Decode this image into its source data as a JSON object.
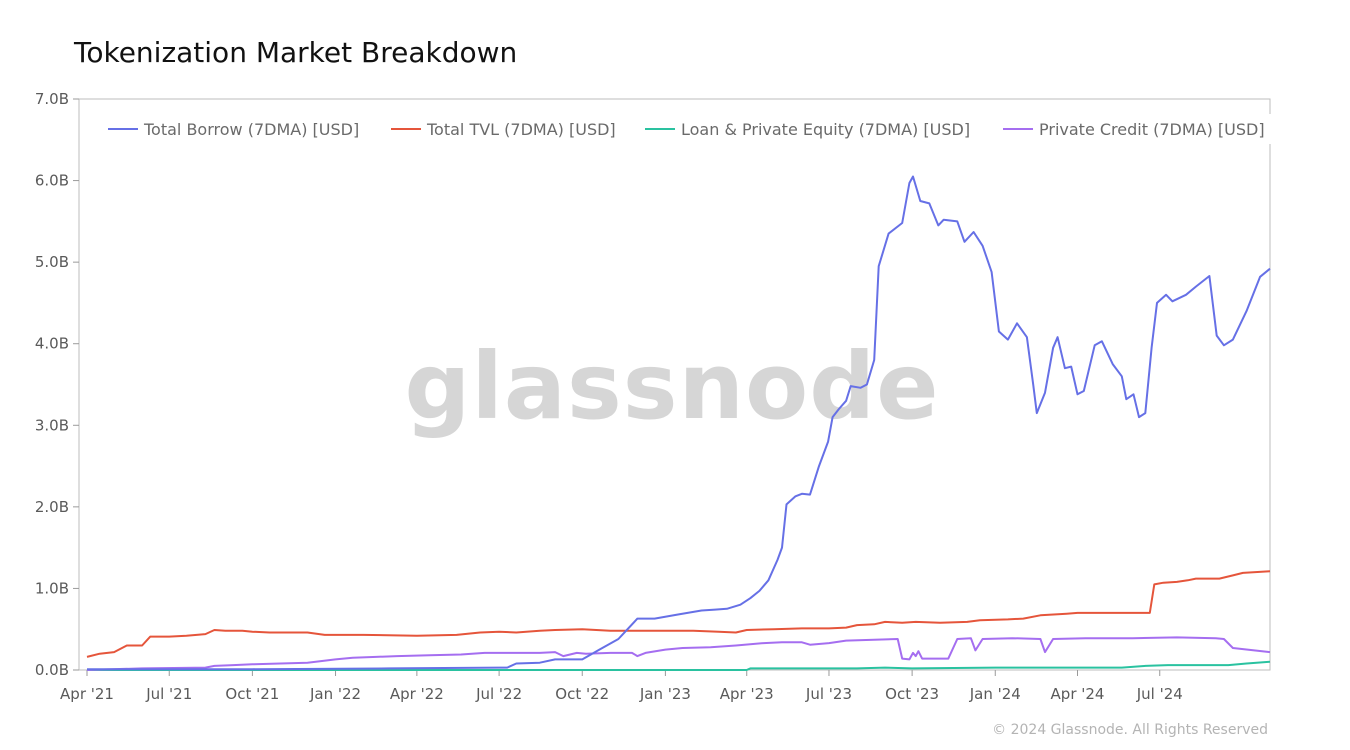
{
  "page": {
    "title": "Tokenization Market Breakdown",
    "watermark": "glassnode",
    "copyright": "© 2024 Glassnode. All Rights Reserved"
  },
  "chart_data": {
    "type": "line",
    "title": "Tokenization Market Breakdown",
    "xlabel": "",
    "ylabel": "",
    "grid": false,
    "legend_position": "top",
    "x_range": [
      "2021-04-01",
      "2024-10-31"
    ],
    "y_range": [
      0,
      7.0
    ],
    "y_unit": "B USD",
    "x_ticks": [
      {
        "date": "2021-04-01",
        "label": "Apr '21"
      },
      {
        "date": "2021-07-01",
        "label": "Jul '21"
      },
      {
        "date": "2021-10-01",
        "label": "Oct '21"
      },
      {
        "date": "2022-01-01",
        "label": "Jan '22"
      },
      {
        "date": "2022-04-01",
        "label": "Apr '22"
      },
      {
        "date": "2022-07-01",
        "label": "Jul '22"
      },
      {
        "date": "2022-10-01",
        "label": "Oct '22"
      },
      {
        "date": "2023-01-01",
        "label": "Jan '23"
      },
      {
        "date": "2023-04-01",
        "label": "Apr '23"
      },
      {
        "date": "2023-07-01",
        "label": "Jul '23"
      },
      {
        "date": "2023-10-01",
        "label": "Oct '23"
      },
      {
        "date": "2024-01-01",
        "label": "Jan '24"
      },
      {
        "date": "2024-04-01",
        "label": "Apr '24"
      },
      {
        "date": "2024-07-01",
        "label": "Jul '24"
      }
    ],
    "y_ticks": [
      {
        "value": 0,
        "label": "0.0B"
      },
      {
        "value": 1,
        "label": "1.0B"
      },
      {
        "value": 2,
        "label": "2.0B"
      },
      {
        "value": 3,
        "label": "3.0B"
      },
      {
        "value": 4,
        "label": "4.0B"
      },
      {
        "value": 5,
        "label": "5.0B"
      },
      {
        "value": 6,
        "label": "6.0B"
      },
      {
        "value": 7,
        "label": "7.0B"
      }
    ],
    "series": [
      {
        "name": "Total Borrow (7DMA) [USD]",
        "color": "#6670e6",
        "points": [
          [
            "2021-04-01",
            0.01
          ],
          [
            "2021-10-01",
            0.01
          ],
          [
            "2022-03-01",
            0.02
          ],
          [
            "2022-07-01",
            0.03
          ],
          [
            "2022-07-10",
            0.03
          ],
          [
            "2022-07-20",
            0.08
          ],
          [
            "2022-08-15",
            0.09
          ],
          [
            "2022-09-01",
            0.13
          ],
          [
            "2022-10-01",
            0.13
          ],
          [
            "2022-10-20",
            0.25
          ],
          [
            "2022-11-10",
            0.38
          ],
          [
            "2022-12-01",
            0.63
          ],
          [
            "2022-12-20",
            0.63
          ],
          [
            "2023-01-15",
            0.68
          ],
          [
            "2023-02-10",
            0.73
          ],
          [
            "2023-02-25",
            0.74
          ],
          [
            "2023-03-10",
            0.75
          ],
          [
            "2023-03-25",
            0.8
          ],
          [
            "2023-04-05",
            0.88
          ],
          [
            "2023-04-15",
            0.97
          ],
          [
            "2023-04-25",
            1.1
          ],
          [
            "2023-05-05",
            1.35
          ],
          [
            "2023-05-10",
            1.5
          ],
          [
            "2023-05-15",
            2.03
          ],
          [
            "2023-05-25",
            2.13
          ],
          [
            "2023-06-01",
            2.16
          ],
          [
            "2023-06-10",
            2.15
          ],
          [
            "2023-06-20",
            2.5
          ],
          [
            "2023-06-30",
            2.8
          ],
          [
            "2023-07-05",
            3.1
          ],
          [
            "2023-07-12",
            3.2
          ],
          [
            "2023-07-20",
            3.3
          ],
          [
            "2023-07-25",
            3.48
          ],
          [
            "2023-08-05",
            3.46
          ],
          [
            "2023-08-12",
            3.5
          ],
          [
            "2023-08-20",
            3.8
          ],
          [
            "2023-08-25",
            4.95
          ],
          [
            "2023-09-05",
            5.35
          ],
          [
            "2023-09-20",
            5.48
          ],
          [
            "2023-09-28",
            5.97
          ],
          [
            "2023-10-02",
            6.05
          ],
          [
            "2023-10-10",
            5.75
          ],
          [
            "2023-10-20",
            5.72
          ],
          [
            "2023-10-30",
            5.45
          ],
          [
            "2023-11-05",
            5.52
          ],
          [
            "2023-11-20",
            5.5
          ],
          [
            "2023-11-28",
            5.25
          ],
          [
            "2023-12-08",
            5.37
          ],
          [
            "2023-12-18",
            5.2
          ],
          [
            "2023-12-28",
            4.88
          ],
          [
            "2024-01-05",
            4.15
          ],
          [
            "2024-01-15",
            4.05
          ],
          [
            "2024-01-25",
            4.25
          ],
          [
            "2024-02-05",
            4.08
          ],
          [
            "2024-02-12",
            3.5
          ],
          [
            "2024-02-16",
            3.15
          ],
          [
            "2024-02-25",
            3.4
          ],
          [
            "2024-03-05",
            3.95
          ],
          [
            "2024-03-10",
            4.08
          ],
          [
            "2024-03-18",
            3.7
          ],
          [
            "2024-03-25",
            3.72
          ],
          [
            "2024-04-01",
            3.38
          ],
          [
            "2024-04-08",
            3.42
          ],
          [
            "2024-04-20",
            3.98
          ],
          [
            "2024-04-28",
            4.03
          ],
          [
            "2024-05-10",
            3.75
          ],
          [
            "2024-05-20",
            3.6
          ],
          [
            "2024-05-25",
            3.32
          ],
          [
            "2024-06-02",
            3.38
          ],
          [
            "2024-06-08",
            3.1
          ],
          [
            "2024-06-15",
            3.15
          ],
          [
            "2024-06-22",
            3.95
          ],
          [
            "2024-06-28",
            4.5
          ],
          [
            "2024-07-08",
            4.6
          ],
          [
            "2024-07-15",
            4.52
          ],
          [
            "2024-07-30",
            4.6
          ],
          [
            "2024-08-10",
            4.7
          ],
          [
            "2024-08-25",
            4.83
          ],
          [
            "2024-09-02",
            4.1
          ],
          [
            "2024-09-10",
            3.98
          ],
          [
            "2024-09-20",
            4.05
          ],
          [
            "2024-10-05",
            4.4
          ],
          [
            "2024-10-20",
            4.82
          ],
          [
            "2024-10-31",
            4.92
          ]
        ]
      },
      {
        "name": "Total TVL (7DMA) [USD]",
        "color": "#e5553b",
        "points": [
          [
            "2021-04-01",
            0.16
          ],
          [
            "2021-04-15",
            0.2
          ],
          [
            "2021-05-01",
            0.22
          ],
          [
            "2021-05-15",
            0.3
          ],
          [
            "2021-06-01",
            0.3
          ],
          [
            "2021-06-10",
            0.41
          ],
          [
            "2021-07-01",
            0.41
          ],
          [
            "2021-07-20",
            0.42
          ],
          [
            "2021-08-10",
            0.44
          ],
          [
            "2021-08-20",
            0.49
          ],
          [
            "2021-09-01",
            0.48
          ],
          [
            "2021-09-20",
            0.48
          ],
          [
            "2021-10-01",
            0.47
          ],
          [
            "2021-10-20",
            0.46
          ],
          [
            "2021-12-01",
            0.46
          ],
          [
            "2021-12-20",
            0.43
          ],
          [
            "2022-02-01",
            0.43
          ],
          [
            "2022-04-01",
            0.42
          ],
          [
            "2022-05-15",
            0.43
          ],
          [
            "2022-06-10",
            0.46
          ],
          [
            "2022-07-01",
            0.47
          ],
          [
            "2022-07-20",
            0.46
          ],
          [
            "2022-08-15",
            0.48
          ],
          [
            "2022-09-01",
            0.49
          ],
          [
            "2022-10-01",
            0.5
          ],
          [
            "2022-11-01",
            0.48
          ],
          [
            "2022-12-01",
            0.48
          ],
          [
            "2023-01-01",
            0.48
          ],
          [
            "2023-02-01",
            0.48
          ],
          [
            "2023-03-01",
            0.47
          ],
          [
            "2023-03-20",
            0.46
          ],
          [
            "2023-04-01",
            0.49
          ],
          [
            "2023-05-01",
            0.5
          ],
          [
            "2023-06-01",
            0.51
          ],
          [
            "2023-07-01",
            0.51
          ],
          [
            "2023-07-20",
            0.52
          ],
          [
            "2023-08-01",
            0.55
          ],
          [
            "2023-08-20",
            0.56
          ],
          [
            "2023-09-01",
            0.59
          ],
          [
            "2023-09-20",
            0.58
          ],
          [
            "2023-10-05",
            0.59
          ],
          [
            "2023-11-01",
            0.58
          ],
          [
            "2023-12-01",
            0.59
          ],
          [
            "2023-12-15",
            0.61
          ],
          [
            "2024-01-15",
            0.62
          ],
          [
            "2024-02-01",
            0.63
          ],
          [
            "2024-02-20",
            0.67
          ],
          [
            "2024-03-20",
            0.69
          ],
          [
            "2024-04-01",
            0.7
          ],
          [
            "2024-06-20",
            0.7
          ],
          [
            "2024-06-25",
            1.05
          ],
          [
            "2024-07-05",
            1.07
          ],
          [
            "2024-07-20",
            1.08
          ],
          [
            "2024-08-01",
            1.1
          ],
          [
            "2024-08-10",
            1.12
          ],
          [
            "2024-09-05",
            1.12
          ],
          [
            "2024-09-20",
            1.16
          ],
          [
            "2024-10-01",
            1.19
          ],
          [
            "2024-10-31",
            1.21
          ]
        ]
      },
      {
        "name": "Loan & Private Equity (7DMA) [USD]",
        "color": "#2ac2a0",
        "points": [
          [
            "2021-04-01",
            0.0
          ],
          [
            "2022-07-01",
            0.0
          ],
          [
            "2023-04-01",
            0.0
          ],
          [
            "2023-04-05",
            0.02
          ],
          [
            "2023-08-01",
            0.02
          ],
          [
            "2023-09-01",
            0.03
          ],
          [
            "2023-10-01",
            0.02
          ],
          [
            "2024-01-01",
            0.03
          ],
          [
            "2024-05-20",
            0.03
          ],
          [
            "2024-06-15",
            0.05
          ],
          [
            "2024-07-10",
            0.06
          ],
          [
            "2024-09-15",
            0.06
          ],
          [
            "2024-10-05",
            0.08
          ],
          [
            "2024-10-31",
            0.1
          ]
        ]
      },
      {
        "name": "Private Credit (7DMA) [USD]",
        "color": "#a56ef0",
        "points": [
          [
            "2021-04-01",
            0.0
          ],
          [
            "2021-06-01",
            0.02
          ],
          [
            "2021-08-10",
            0.03
          ],
          [
            "2021-08-20",
            0.05
          ],
          [
            "2021-09-10",
            0.06
          ],
          [
            "2021-10-01",
            0.07
          ],
          [
            "2021-11-01",
            0.08
          ],
          [
            "2021-12-01",
            0.09
          ],
          [
            "2022-01-01",
            0.13
          ],
          [
            "2022-01-20",
            0.15
          ],
          [
            "2022-02-15",
            0.16
          ],
          [
            "2022-03-10",
            0.17
          ],
          [
            "2022-04-15",
            0.18
          ],
          [
            "2022-05-20",
            0.19
          ],
          [
            "2022-06-15",
            0.21
          ],
          [
            "2022-08-15",
            0.21
          ],
          [
            "2022-09-01",
            0.22
          ],
          [
            "2022-09-10",
            0.17
          ],
          [
            "2022-09-25",
            0.21
          ],
          [
            "2022-10-05",
            0.2
          ],
          [
            "2022-11-01",
            0.21
          ],
          [
            "2022-11-25",
            0.21
          ],
          [
            "2022-12-01",
            0.17
          ],
          [
            "2022-12-10",
            0.21
          ],
          [
            "2023-01-01",
            0.25
          ],
          [
            "2023-01-20",
            0.27
          ],
          [
            "2023-02-20",
            0.28
          ],
          [
            "2023-03-20",
            0.3
          ],
          [
            "2023-04-20",
            0.33
          ],
          [
            "2023-05-10",
            0.34
          ],
          [
            "2023-06-01",
            0.34
          ],
          [
            "2023-06-10",
            0.31
          ],
          [
            "2023-07-01",
            0.33
          ],
          [
            "2023-07-20",
            0.36
          ],
          [
            "2023-09-15",
            0.38
          ],
          [
            "2023-09-20",
            0.14
          ],
          [
            "2023-09-28",
            0.13
          ],
          [
            "2023-10-02",
            0.21
          ],
          [
            "2023-10-05",
            0.17
          ],
          [
            "2023-10-08",
            0.23
          ],
          [
            "2023-10-12",
            0.14
          ],
          [
            "2023-11-10",
            0.14
          ],
          [
            "2023-11-20",
            0.38
          ],
          [
            "2023-12-05",
            0.39
          ],
          [
            "2023-12-10",
            0.24
          ],
          [
            "2023-12-18",
            0.38
          ],
          [
            "2024-01-20",
            0.39
          ],
          [
            "2024-02-20",
            0.38
          ],
          [
            "2024-02-25",
            0.22
          ],
          [
            "2024-03-05",
            0.38
          ],
          [
            "2024-04-10",
            0.39
          ],
          [
            "2024-05-10",
            0.39
          ],
          [
            "2024-06-01",
            0.39
          ],
          [
            "2024-07-20",
            0.4
          ],
          [
            "2024-09-01",
            0.39
          ],
          [
            "2024-09-10",
            0.38
          ],
          [
            "2024-09-20",
            0.27
          ],
          [
            "2024-10-31",
            0.22
          ]
        ]
      }
    ]
  }
}
